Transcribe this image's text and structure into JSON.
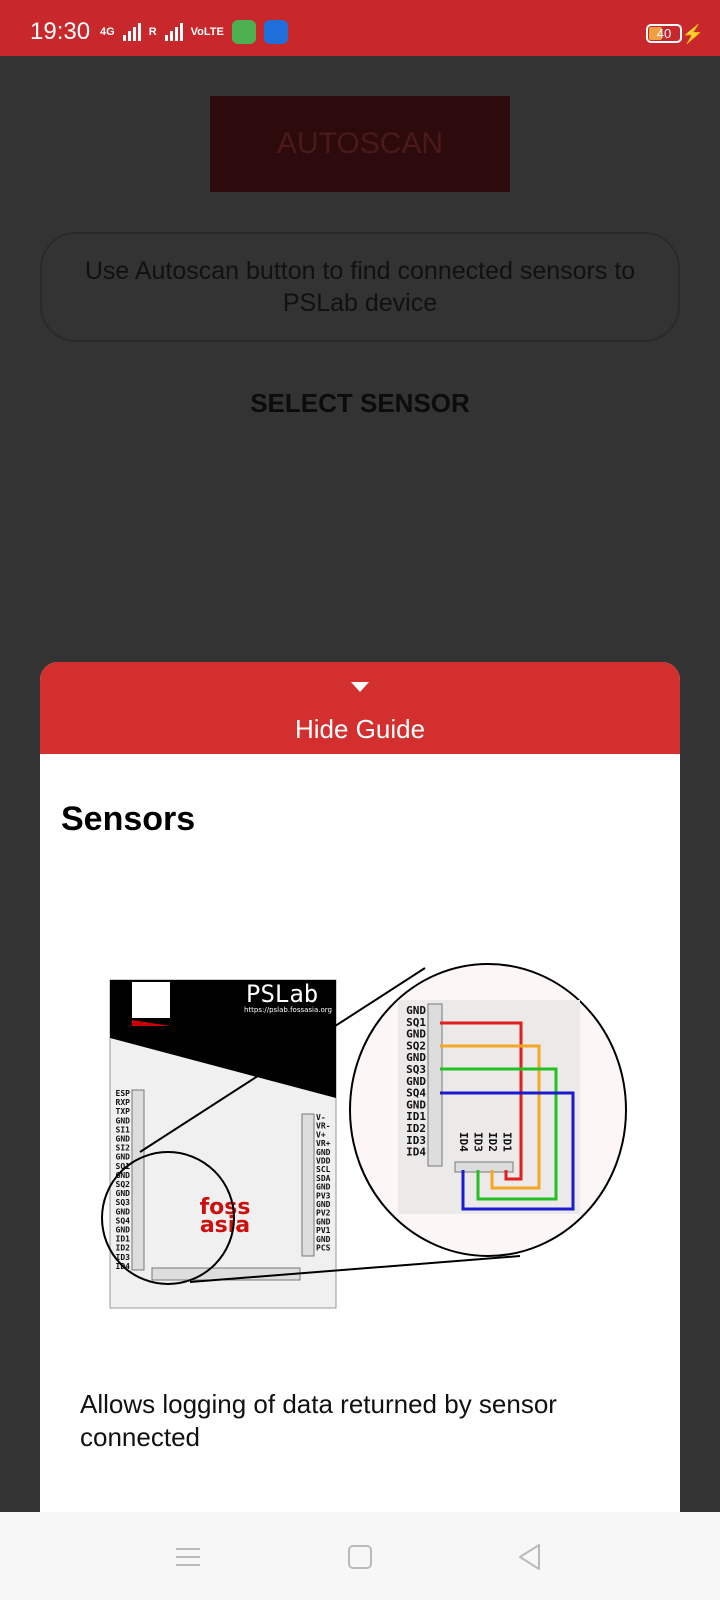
{
  "status_bar": {
    "time": "19:30",
    "network1": "4G",
    "network2": "R",
    "volte": "VoLTE",
    "battery": "40"
  },
  "main": {
    "autoscan_label": "AUTOSCAN",
    "info_text": "Use Autoscan button to find connected sensors to PSLab device",
    "select_sensor_label": "SELECT SENSOR"
  },
  "guide": {
    "toggle_label": "Hide Guide",
    "title": "Sensors",
    "description": "Allows logging of data returned by sensor connected",
    "diagram": {
      "brand": "PSLab",
      "url": "https://pslab.fossasia.org",
      "logo_top": "foss",
      "logo_bottom": "asia",
      "left_pins": [
        "ESP",
        "RXP",
        "TXP",
        "GND",
        "SI1",
        "GND",
        "SI2",
        "GND",
        "SQ1",
        "GND",
        "SQ2",
        "GND",
        "SQ3",
        "GND",
        "SQ4",
        "GND",
        "ID1",
        "ID2",
        "ID3",
        "ID4"
      ],
      "right_pins": [
        "V-",
        "VR-",
        "V+",
        "VR+",
        "GND",
        "VDD",
        "SCL",
        "SDA",
        "GND",
        "PV3",
        "GND",
        "PV2",
        "GND",
        "PV1",
        "GND",
        "PCS"
      ],
      "zoom_pins": [
        "GND",
        "SQ1",
        "GND",
        "SQ2",
        "GND",
        "SQ3",
        "GND",
        "SQ4",
        "GND",
        "ID1",
        "ID2",
        "ID3",
        "ID4"
      ],
      "zoom_bottom_pins": [
        "ID4",
        "ID3",
        "ID2",
        "ID1"
      ],
      "wire_colors": [
        "#e02020",
        "#f5a623",
        "#22c022",
        "#1a1ad0"
      ]
    }
  },
  "nav": {
    "menu_icon": "menu-icon",
    "home_icon": "home-icon",
    "back_icon": "back-icon"
  }
}
